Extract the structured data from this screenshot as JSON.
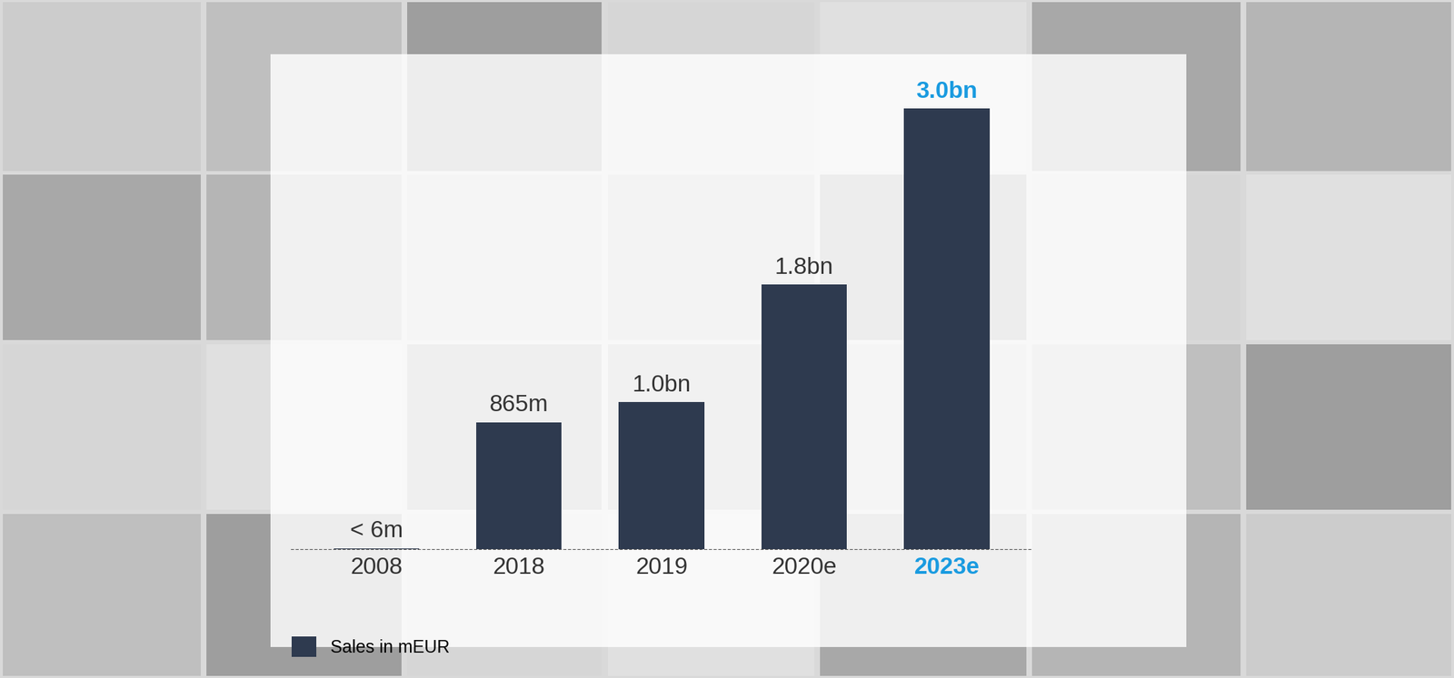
{
  "chart_data": {
    "type": "bar",
    "categories": [
      "2008",
      "2018",
      "2019",
      "2020e",
      "2023e"
    ],
    "series": [
      {
        "name": "Sales in mEUR",
        "color": "#2e3a4f",
        "values": [
          6,
          865,
          1000,
          1800,
          3000
        ],
        "value_labels": [
          "< 6m",
          "865m",
          "1.0bn",
          "1.8bn",
          "3.0bn"
        ]
      }
    ],
    "ylim": [
      0,
      3000
    ],
    "data_labels": true,
    "tick_labels": "x",
    "legend": "lower left"
  }
}
